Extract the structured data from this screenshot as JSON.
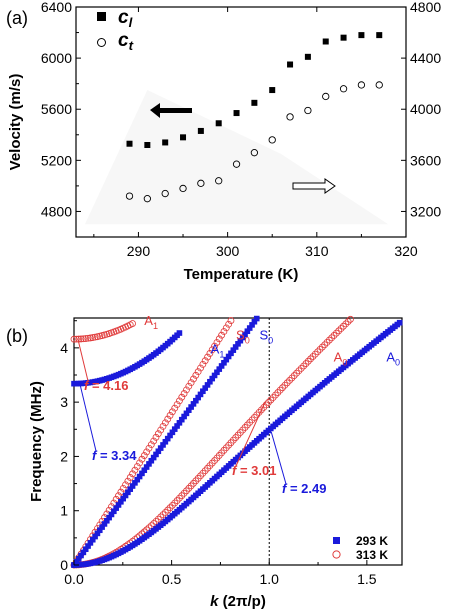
{
  "chart_data": [
    {
      "panel_label": "(a)",
      "type": "scatter",
      "xlabel": "Temperature (K)",
      "ylabel": "Velocity (m/s)",
      "xlim": [
        283,
        320
      ],
      "ylim": [
        4600,
        6400
      ],
      "ylim_right": [
        3000,
        4800
      ],
      "xticks": [
        "290",
        "300",
        "310",
        "320"
      ],
      "yticks": [
        "4800",
        "5200",
        "5600",
        "6000",
        "6400"
      ],
      "yticks_right": [
        "3200",
        "3600",
        "4000",
        "4400",
        "4800"
      ],
      "grid": false,
      "legend_position": "top-left",
      "legend": {
        "cl_main": "c",
        "cl_sub": "l",
        "ct_main": "c",
        "ct_sub": "t"
      },
      "series": [
        {
          "key": "cl",
          "marker": "filled-square",
          "axis": "left",
          "color": "#000000",
          "x": [
            289,
            291,
            293,
            295,
            297,
            299,
            301,
            303,
            305,
            307,
            309,
            311,
            313,
            315,
            317
          ],
          "y": [
            5330,
            5320,
            5340,
            5380,
            5430,
            5490,
            5570,
            5650,
            5750,
            5950,
            6010,
            6130,
            6160,
            6180,
            6180
          ]
        },
        {
          "key": "ct",
          "marker": "open-circle",
          "axis": "right",
          "color": "#000000",
          "x": [
            289,
            291,
            293,
            295,
            297,
            299,
            301,
            303,
            305,
            307,
            309,
            311,
            313,
            315,
            317
          ],
          "y": [
            3320,
            3300,
            3340,
            3380,
            3420,
            3440,
            3570,
            3660,
            3760,
            3940,
            3990,
            4100,
            4160,
            4190,
            4190
          ]
        }
      ],
      "arrows": [
        {
          "direction": "left",
          "style": "filled",
          "points_to_axis": "left"
        },
        {
          "direction": "right",
          "style": "open",
          "points_to_axis": "right"
        }
      ]
    },
    {
      "panel_label": "(b)",
      "type": "scatter",
      "xlabel_main": "k",
      "xlabel_rest": " (2π/p)",
      "ylabel": "Frequency (MHz)",
      "xlim": [
        0,
        1.68
      ],
      "ylim": [
        0,
        4.55
      ],
      "xticks": [
        "0.0",
        "0.5",
        "1.0",
        "1.5"
      ],
      "yticks": [
        "0",
        "1",
        "2",
        "3",
        "4"
      ],
      "grid": false,
      "legend_position": "bottom-right",
      "legend": [
        {
          "label": "293 K",
          "marker": "filled-square",
          "color": "#1a1adb"
        },
        {
          "label": "313 K",
          "marker": "open-circle",
          "color": "#e03a3a"
        }
      ],
      "vline_x": 1.0,
      "series": [
        {
          "name": "A1",
          "temp": "293 K",
          "color": "#1a1adb",
          "f0": 3.34,
          "slope": 0,
          "xmax": 0.55
        },
        {
          "name": "S0",
          "temp": "293 K",
          "color": "#1a1adb",
          "f0": 0,
          "slope": 0,
          "xmax": 0.95
        },
        {
          "name": "A0",
          "temp": "293 K",
          "color": "#1a1adb",
          "f0": 0,
          "slope": 0,
          "xmax": 1.68
        },
        {
          "name": "A1",
          "temp": "313 K",
          "color": "#e03a3a",
          "f0": 4.16,
          "slope": 0,
          "xmax": 0.3
        },
        {
          "name": "S0",
          "temp": "313 K",
          "color": "#e03a3a",
          "f0": 0,
          "slope": 0,
          "xmax": 0.82
        },
        {
          "name": "A0",
          "temp": "313 K",
          "color": "#e03a3a",
          "f0": 0,
          "slope": 0,
          "xmax": 1.42
        }
      ],
      "annotations": [
        {
          "text": "f = 4.16",
          "italic_prefix": "f",
          "rest": " = 4.16",
          "color": "#e03a3a",
          "x": 0.02,
          "y": 4.16
        },
        {
          "text": "f = 3.34",
          "italic_prefix": "f",
          "rest": " = 3.34",
          "color": "#1a1adb",
          "x": 0.02,
          "y": 3.34
        },
        {
          "text": "f = 3.01",
          "italic_prefix": "f",
          "rest": " = 3.01",
          "color": "#e03a3a",
          "x": 1.0,
          "y": 3.01
        },
        {
          "text": "f = 2.49",
          "italic_prefix": "f",
          "rest": " = 2.49",
          "color": "#1a1adb",
          "x": 1.0,
          "y": 2.49
        }
      ],
      "mode_labels": [
        {
          "main": "A",
          "sub": "1",
          "color": "#e03a3a",
          "x": 0.36,
          "y": 4.42
        },
        {
          "main": "A",
          "sub": "1",
          "color": "#1a1adb",
          "x": 0.7,
          "y": 3.9
        },
        {
          "main": "S",
          "sub": "0",
          "color": "#e03a3a",
          "x": 0.83,
          "y": 4.15
        },
        {
          "main": "S",
          "sub": "0",
          "color": "#1a1adb",
          "x": 0.95,
          "y": 4.15
        },
        {
          "main": "A",
          "sub": "0",
          "color": "#e03a3a",
          "x": 1.33,
          "y": 3.75
        },
        {
          "main": "A",
          "sub": "0",
          "color": "#1a1adb",
          "x": 1.6,
          "y": 3.75
        }
      ]
    }
  ]
}
